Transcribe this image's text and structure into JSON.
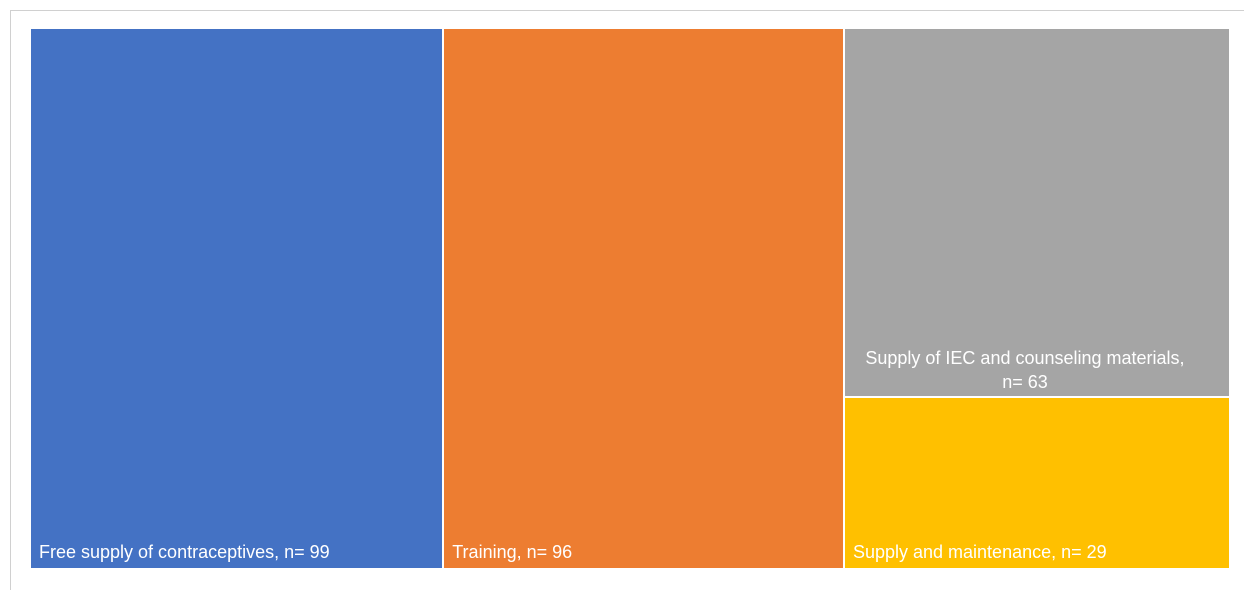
{
  "chart_data": {
    "type": "treemap",
    "categories": [
      "Free supply of contraceptives,",
      "Training,",
      "Supply of IEC and counseling materials,",
      "Supply and maintenance,"
    ],
    "values": [
      99,
      96,
      63,
      29
    ],
    "value_labels": [
      "n= 99",
      "n= 96",
      "n= 63",
      "n= 29"
    ],
    "colors": [
      "#4472c4",
      "#ed7d31",
      "#a5a5a5",
      "#ffc000"
    ]
  }
}
